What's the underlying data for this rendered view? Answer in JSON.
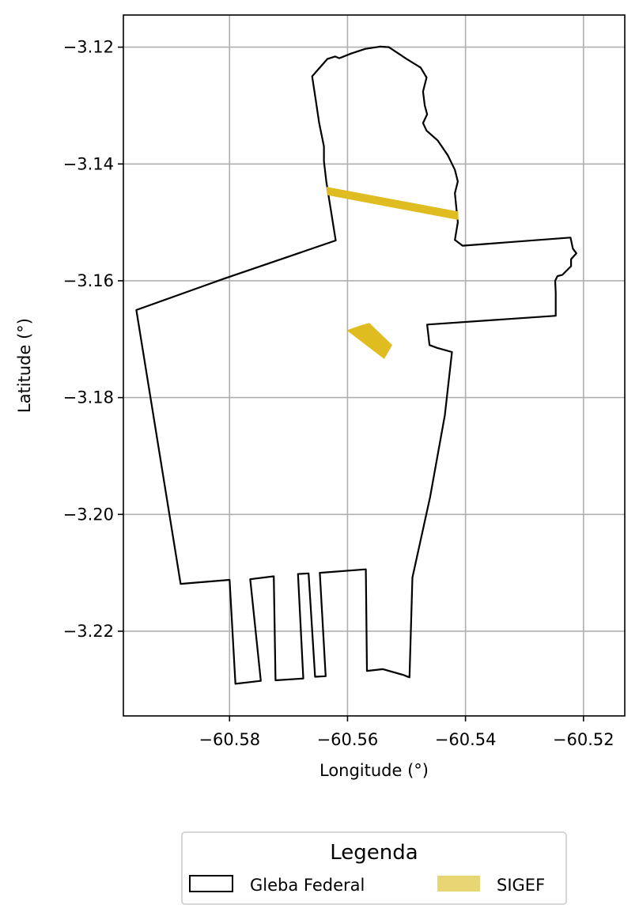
{
  "chart_data": {
    "type": "map",
    "xlabel": "Longitude (°)",
    "ylabel": "Latitude (°)",
    "xlim": [
      -60.598,
      -60.513
    ],
    "ylim": [
      -3.2345,
      -3.1145
    ],
    "grid": true,
    "x_ticks": [
      -60.58,
      -60.56,
      -60.54,
      -60.52
    ],
    "x_tick_labels": [
      "−60.58",
      "−60.56",
      "−60.54",
      "−60.52"
    ],
    "y_ticks": [
      -3.12,
      -3.14,
      -3.16,
      -3.18,
      -3.2,
      -3.22
    ],
    "y_tick_labels": [
      "−3.12",
      "−3.14",
      "−3.16",
      "−3.18",
      "−3.20",
      "−3.22"
    ],
    "legend": {
      "title": "Legenda",
      "placement": "bottom-center, below plot",
      "entries": [
        {
          "label": "Gleba Federal",
          "style": "outline",
          "color": "#000000"
        },
        {
          "label": "SIGEF",
          "style": "fill",
          "color": "#e8d574"
        }
      ]
    },
    "layers": [
      {
        "name": "Gleba Federal",
        "color": "#000000",
        "polygons": [
          [
            [
              -60.5634,
              -3.122
            ],
            [
              -60.5621,
              -3.1216
            ],
            [
              -60.5614,
              -3.1219
            ],
            [
              -60.5594,
              -3.1211
            ],
            [
              -60.557,
              -3.1203
            ],
            [
              -60.5545,
              -3.1199
            ],
            [
              -60.553,
              -3.12
            ],
            [
              -60.55,
              -3.122
            ],
            [
              -60.5476,
              -3.1235
            ],
            [
              -60.5466,
              -3.1252
            ],
            [
              -60.5472,
              -3.1276
            ],
            [
              -60.5469,
              -3.13
            ],
            [
              -60.5465,
              -3.1315
            ],
            [
              -60.5472,
              -3.133
            ],
            [
              -60.5466,
              -3.1343
            ],
            [
              -60.5447,
              -3.136
            ],
            [
              -60.543,
              -3.1385
            ],
            [
              -60.5418,
              -3.141
            ],
            [
              -60.5413,
              -3.143
            ],
            [
              -60.5418,
              -3.145
            ],
            [
              -60.5415,
              -3.148
            ],
            [
              -60.5413,
              -3.15
            ],
            [
              -60.5418,
              -3.153
            ],
            [
              -60.5405,
              -3.154
            ],
            [
              -60.5222,
              -3.1526
            ],
            [
              -60.5218,
              -3.1545
            ],
            [
              -60.5212,
              -3.1553
            ],
            [
              -60.5221,
              -3.1563
            ],
            [
              -60.5221,
              -3.1575
            ],
            [
              -60.5236,
              -3.159
            ],
            [
              -60.5244,
              -3.1592
            ],
            [
              -60.5248,
              -3.16
            ],
            [
              -60.5247,
              -3.162
            ],
            [
              -60.5247,
              -3.166
            ],
            [
              -60.5465,
              -3.1675
            ],
            [
              -60.5461,
              -3.171
            ],
            [
              -60.5448,
              -3.1715
            ],
            [
              -60.5423,
              -3.1722
            ],
            [
              -60.5435,
              -3.183
            ],
            [
              -60.546,
              -3.197
            ],
            [
              -60.549,
              -3.2108
            ],
            [
              -60.5495,
              -3.2279
            ],
            [
              -60.5505,
              -3.2275
            ],
            [
              -60.554,
              -3.2265
            ],
            [
              -60.5567,
              -3.2268
            ],
            [
              -60.5569,
              -3.2094
            ],
            [
              -60.5647,
              -3.21
            ],
            [
              -60.5637,
              -3.2277
            ],
            [
              -60.5655,
              -3.2278
            ],
            [
              -60.5666,
              -3.2101
            ],
            [
              -60.5684,
              -3.2102
            ],
            [
              -60.5675,
              -3.2281
            ],
            [
              -60.5722,
              -3.2284
            ],
            [
              -60.5725,
              -3.2106
            ],
            [
              -60.5765,
              -3.2111
            ],
            [
              -60.5747,
              -3.2285
            ],
            [
              -60.579,
              -3.229
            ],
            [
              -60.58,
              -3.2112
            ],
            [
              -60.5883,
              -3.2119
            ],
            [
              -60.5958,
              -3.165
            ],
            [
              -60.5811,
              -3.1597
            ],
            [
              -60.562,
              -3.1531
            ],
            [
              -60.5636,
              -3.143
            ],
            [
              -60.564,
              -3.1395
            ],
            [
              -60.564,
              -3.137
            ],
            [
              -60.5648,
              -3.133
            ],
            [
              -60.5654,
              -3.129
            ],
            [
              -60.566,
              -3.125
            ]
          ]
        ]
      },
      {
        "name": "SIGEF",
        "color": "#dfbc20",
        "polygons": [
          [
            [
              -60.5635,
              -3.144
            ],
            [
              -60.5413,
              -3.1482
            ],
            [
              -60.5413,
              -3.1495
            ],
            [
              -60.5633,
              -3.1453
            ]
          ],
          [
            [
              -60.56,
              -3.1685
            ],
            [
              -60.5578,
              -3.1677
            ],
            [
              -60.5563,
              -3.1673
            ],
            [
              -60.5525,
              -3.171
            ],
            [
              -60.5538,
              -3.1733
            ]
          ]
        ]
      }
    ]
  }
}
